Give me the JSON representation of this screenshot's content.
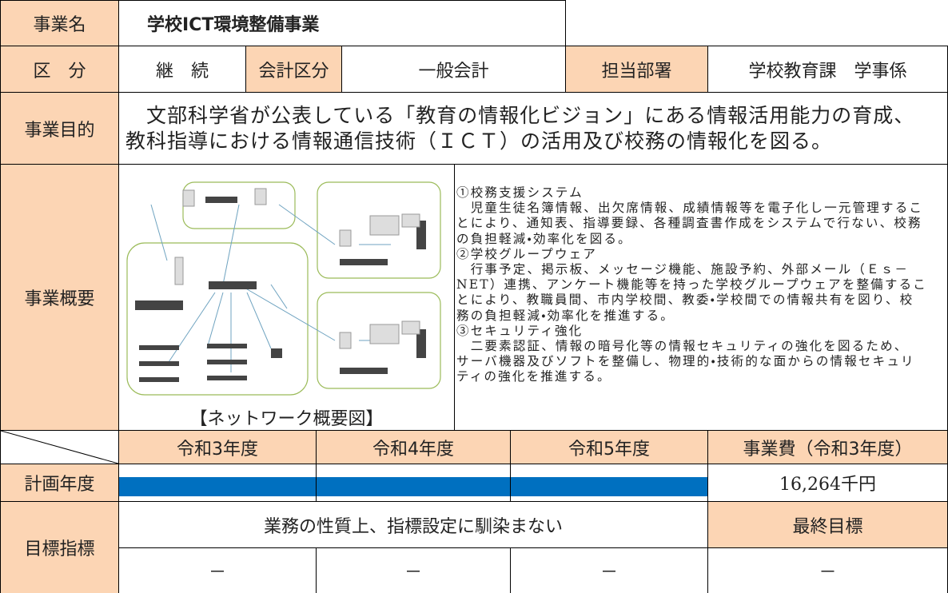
{
  "header": {
    "label": "事業名",
    "value": "学校ICT環境整備事業"
  },
  "division": {
    "label": "区　分",
    "value": "継　続",
    "account_label": "会計区分",
    "account_value": "一般会計",
    "dept_label": "担当部署",
    "dept_value": "学校教育課　学事係"
  },
  "purpose": {
    "label": "事業目的",
    "lines": [
      "　文部科学省が公表している「教育の情報化ビジョン」にある情報活用能力の育成、",
      "教科指導における情報通信技術（ＩＣＴ）の活用及び校務の情報化を図る。"
    ]
  },
  "overview": {
    "label": "事業概要",
    "caption": "【ネットワーク概要図】",
    "lines": [
      "①校務支援システム",
      "　児童生徒名簿情報、出欠席情報、成績情報等を電子化し一元管理するこ",
      "とにより、通知表、指導要録、各種調査書作成をシステムで行ない、校務",
      "の負担軽減・効率化を図る。",
      "②学校グループウェア",
      "　行事予定、掲示板、メッセージ機能、施設予約、外部メール（Ｅｓ－",
      "NET）連携、アンケート機能等を持った学校グループウェアを整備するこ",
      "とにより、教職員間、市内学校間、教委・学校間での情報共有を図り、校",
      "務の負担軽減・効率化を推進する。",
      "③セキュリティ強化",
      "　二要素認証、情報の暗号化等の情報セキュリティの強化を図るため、",
      "サーバ機器及びソフトを整備し、物理的・技術的な面からの情報セキュリ",
      "ティの強化を推進する。"
    ]
  },
  "schedule": {
    "years": [
      "令和3年度",
      "令和4年度",
      "令和5年度"
    ],
    "cost_label": "事業費（令和3年度）",
    "plan_label": "計画年度",
    "cost_value": "16,264千円"
  },
  "indicator": {
    "label": "目標指標",
    "note": "業務の性質上、指標設定に馴染まない",
    "final_label": "最終目標",
    "values": [
      "－",
      "－",
      "－",
      "－"
    ]
  }
}
